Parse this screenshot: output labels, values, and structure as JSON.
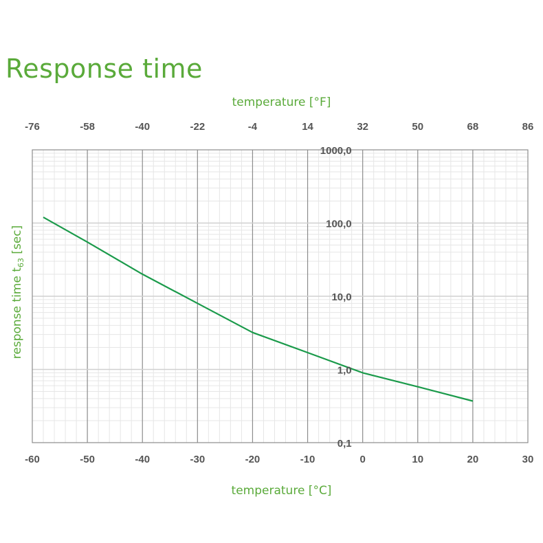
{
  "chart_data": {
    "type": "line",
    "title": "Response time",
    "xlabel": "temperature [°C]",
    "x2label": "temperature [°F]",
    "ylabel": "response time t",
    "ylabel_sub": "63",
    "ylabel_unit": " [sec]",
    "xlim": [
      -60,
      30
    ],
    "x_ticks": [
      "-60",
      "-50",
      "-40",
      "-30",
      "-20",
      "-10",
      "0",
      "10",
      "20",
      "30"
    ],
    "x2_ticks": [
      "-76",
      "-58",
      "-40",
      "-22",
      "-4",
      "14",
      "32",
      "50",
      "68",
      "86"
    ],
    "ylim": [
      0.1,
      1000
    ],
    "y_scale": "log",
    "y_ticks": [
      "0,1",
      "1,0",
      "10,0",
      "100,0",
      "1000,0"
    ],
    "grid": true,
    "series": [
      {
        "color": "#1a9a4a",
        "x": [
          -58,
          -50,
          -40,
          -30,
          -20,
          -10,
          0,
          10,
          20
        ],
        "y": [
          120,
          55,
          20,
          8,
          3.2,
          1.7,
          0.9,
          0.58,
          0.37
        ]
      }
    ]
  }
}
